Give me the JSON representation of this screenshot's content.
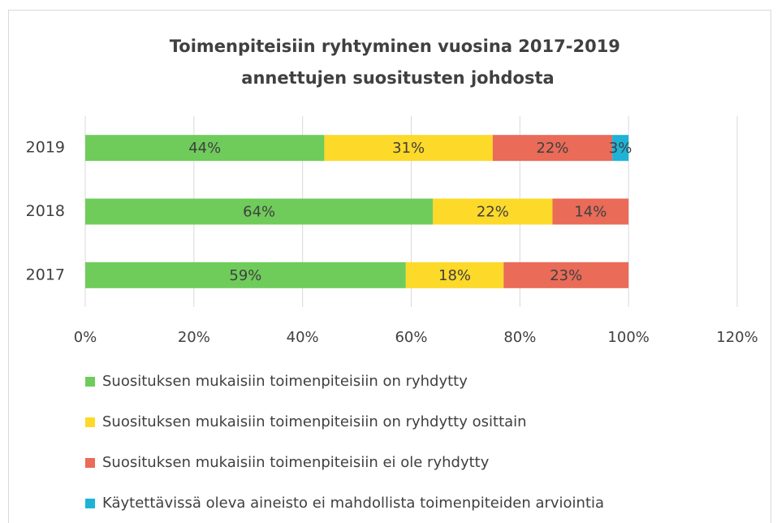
{
  "chart_data": {
    "type": "bar",
    "orientation": "horizontal",
    "stacked": true,
    "title": [
      "Toimenpiteisiin ryhtyminen vuosina 2017-2019",
      "annettujen suositusten johdosta"
    ],
    "categories": [
      "2019",
      "2018",
      "2017"
    ],
    "series": [
      {
        "name": "Suosituksen mukaisiin toimenpiteisiin on ryhdytty",
        "color": "#6fcc5b",
        "values": [
          44,
          64,
          59
        ],
        "value_labels": [
          "44%",
          "64%",
          "59%"
        ]
      },
      {
        "name": "Suosituksen mukaisiin toimenpiteisiin on ryhdytty osittain",
        "color": "#fdd929",
        "values": [
          31,
          22,
          18
        ],
        "value_labels": [
          "31%",
          "22%",
          "18%"
        ]
      },
      {
        "name": "Suosituksen mukaisiin toimenpiteisiin ei ole ryhdytty",
        "color": "#e96b58",
        "values": [
          22,
          14,
          23
        ],
        "value_labels": [
          "22%",
          "14%",
          "23%"
        ]
      },
      {
        "name": "Käytettävissä oleva aineisto ei mahdollista toimenpiteiden arviointia",
        "color": "#1eb3d6",
        "values": [
          3,
          null,
          null
        ],
        "value_labels": [
          "3%",
          null,
          null
        ]
      }
    ],
    "xlim": [
      0,
      120
    ],
    "xticks": [
      {
        "value": 0,
        "label": "0%"
      },
      {
        "value": 20,
        "label": "20%"
      },
      {
        "value": 40,
        "label": "40%"
      },
      {
        "value": 60,
        "label": "60%"
      },
      {
        "value": 80,
        "label": "80%"
      },
      {
        "value": 100,
        "label": "100%"
      },
      {
        "value": 120,
        "label": "120%"
      }
    ],
    "grid": true,
    "legend": "bottom"
  }
}
